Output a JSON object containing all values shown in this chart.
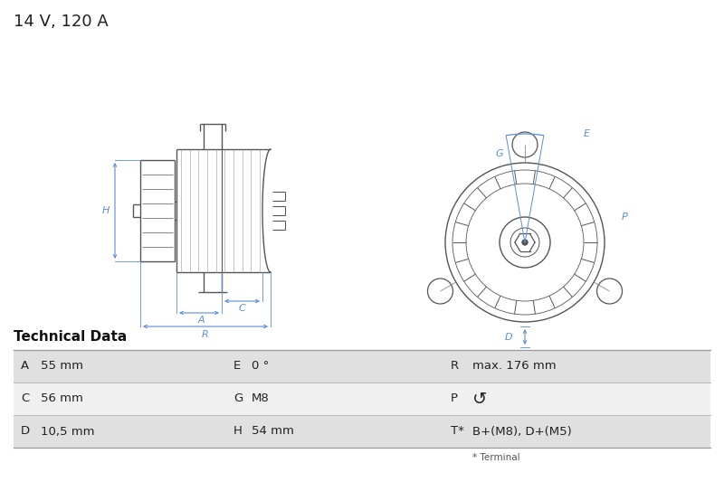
{
  "title": "14 V, 120 A",
  "title_fontsize": 13,
  "title_color": "#222222",
  "bg_color": "#ffffff",
  "table_header": "Technical Data",
  "table_header_fontsize": 11,
  "table_bg_odd": "#e0e0e0",
  "table_bg_even": "#f0f0f0",
  "dim_color": "#5b8dd9",
  "drawing_line_color": "#555555",
  "rows": [
    {
      "col1_key": "A",
      "col1_val": "55 mm",
      "col2_key": "E",
      "col2_val": "0 °",
      "col3_key": "R",
      "col3_val": "max. 176 mm"
    },
    {
      "col1_key": "C",
      "col1_val": "56 mm",
      "col2_key": "G",
      "col2_val": "M8",
      "col3_key": "P",
      "col3_val": "↺"
    },
    {
      "col1_key": "D",
      "col1_val": "10,5 mm",
      "col2_key": "H",
      "col2_val": "54 mm",
      "col3_key": "T*",
      "col3_val": "B+(M8), D+(M5)"
    }
  ],
  "footnote": "* Terminal"
}
